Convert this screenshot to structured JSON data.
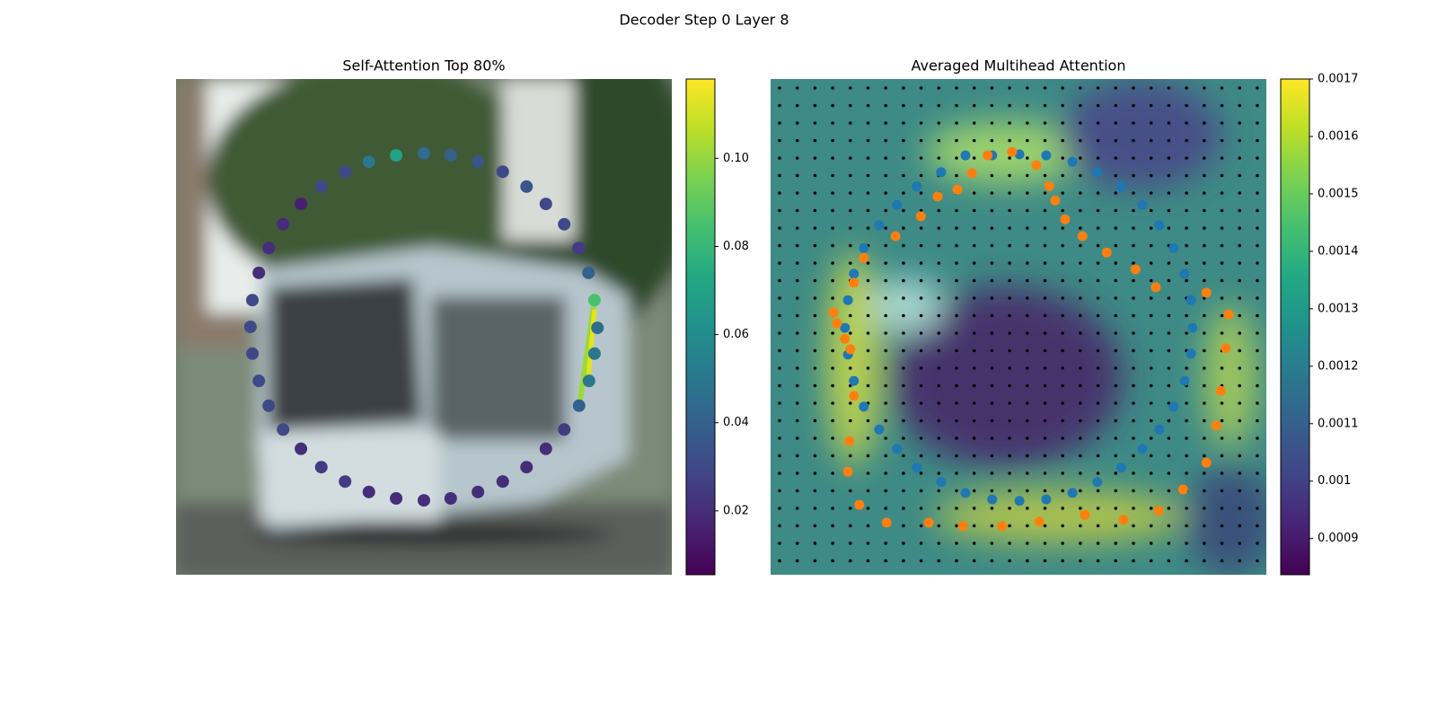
{
  "title": "Decoder Step 0 Layer 8",
  "chart_data": [
    {
      "type": "scatter",
      "title": "Self-Attention Top 80%",
      "colormap": "viridis",
      "xlim": [
        0,
        100
      ],
      "ylim": [
        100,
        0
      ],
      "x": [
        44.4,
        50.0,
        55.4,
        60.9,
        65.9,
        70.7,
        74.6,
        78.3,
        81.2,
        83.2,
        84.4,
        85.0,
        84.4,
        83.3,
        81.3,
        78.3,
        74.6,
        70.7,
        65.9,
        60.9,
        55.4,
        50.0,
        44.4,
        38.9,
        34.1,
        29.3,
        25.2,
        21.6,
        18.7,
        16.7,
        15.4,
        15.0,
        15.4,
        16.7,
        18.7,
        21.6,
        25.2,
        29.3,
        34.1,
        38.9
      ],
      "y": [
        15.4,
        15.0,
        15.4,
        16.7,
        18.7,
        21.7,
        25.2,
        29.3,
        34.1,
        39.1,
        44.6,
        50.2,
        55.4,
        60.9,
        65.9,
        70.7,
        74.6,
        78.3,
        81.2,
        83.3,
        84.6,
        85.0,
        84.6,
        83.3,
        81.2,
        78.3,
        74.6,
        70.7,
        65.9,
        60.9,
        55.4,
        50.0,
        44.6,
        39.1,
        34.1,
        29.3,
        25.2,
        21.7,
        18.7,
        16.7
      ],
      "values": [
        0.07,
        0.045,
        0.04,
        0.035,
        0.03,
        0.035,
        0.03,
        0.03,
        0.025,
        0.04,
        0.085,
        0.045,
        0.05,
        0.05,
        0.04,
        0.025,
        0.02,
        0.02,
        0.02,
        0.02,
        0.02,
        0.02,
        0.02,
        0.02,
        0.025,
        0.025,
        0.02,
        0.03,
        0.03,
        0.03,
        0.03,
        0.03,
        0.03,
        0.02,
        0.02,
        0.02,
        0.015,
        0.03,
        0.03,
        0.05
      ],
      "colorbar": {
        "ylim": [
          0.0055,
          0.118
        ],
        "yticks": [
          0.02,
          0.04,
          0.06,
          0.08,
          {
            "value": 0.1,
            "label": "0.10"
          }
        ]
      }
    },
    {
      "type": "scatter",
      "title": "Averaged Multihead Attention",
      "colormap": "viridis",
      "xlim": [
        0,
        100
      ],
      "ylim": [
        100,
        0
      ],
      "series": [
        {
          "color": "#1f77b4",
          "x": [
            39.3,
            44.7,
            50.2,
            55.6,
            60.9,
            65.9,
            70.7,
            75.0,
            78.4,
            81.3,
            83.5,
            84.8,
            85.1,
            84.8,
            83.5,
            81.3,
            78.4,
            75.0,
            70.7,
            65.9,
            60.9,
            55.6,
            50.2,
            44.7,
            39.3,
            34.4,
            29.5,
            25.5,
            21.9,
            18.8,
            16.8,
            15.6,
            15.0,
            15.6,
            16.8,
            18.8,
            21.9,
            25.5,
            29.5,
            34.4
          ],
          "y": [
            15.4,
            15.4,
            15.2,
            15.4,
            16.7,
            18.8,
            21.7,
            25.4,
            29.5,
            34.1,
            39.3,
            44.6,
            50.2,
            55.4,
            60.9,
            66.1,
            70.7,
            74.6,
            78.4,
            81.3,
            83.5,
            84.8,
            85.1,
            84.8,
            83.5,
            81.3,
            78.4,
            74.6,
            70.7,
            66.1,
            60.9,
            55.6,
            50.2,
            44.6,
            39.3,
            34.1,
            29.5,
            25.4,
            21.7,
            18.8
          ]
        },
        {
          "color": "#ff7f0e",
          "x": [
            43.8,
            48.7,
            53.6,
            56.2,
            57.4,
            59.4,
            62.9,
            67.8,
            73.6,
            77.7,
            87.9,
            92.4,
            91.8,
            90.8,
            89.9,
            87.9,
            83.2,
            78.3,
            71.2,
            63.4,
            54.2,
            46.7,
            38.8,
            31.9,
            23.4,
            17.9,
            15.6,
            15.9,
            16.8,
            16.1,
            15.0,
            13.4,
            12.7,
            16.8,
            18.8,
            25.2,
            30.3,
            33.7,
            37.7,
            40.6
          ],
          "y": [
            15.4,
            14.7,
            17.4,
            21.6,
            24.5,
            28.3,
            31.7,
            35.0,
            38.4,
            42.0,
            43.1,
            47.5,
            54.3,
            62.9,
            69.9,
            77.4,
            82.8,
            87.1,
            88.9,
            87.9,
            89.3,
            90.2,
            90.2,
            89.5,
            89.5,
            85.9,
            79.2,
            73.0,
            63.9,
            54.5,
            52.4,
            49.3,
            47.1,
            41.1,
            36.1,
            31.7,
            27.7,
            23.7,
            22.3,
            19.0
          ]
        }
      ],
      "colorbar": {
        "ylim": [
          0.000837,
          0.0017
        ],
        "yticks": [
          0.0009,
          0.001,
          0.0011,
          0.0012,
          0.0013,
          0.0014,
          0.0015,
          0.0016,
          0.0017
        ]
      }
    }
  ]
}
